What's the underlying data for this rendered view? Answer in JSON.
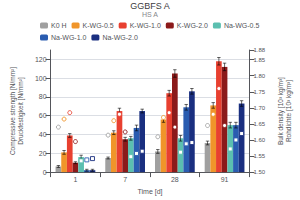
{
  "chart_data": {
    "type": "bar",
    "title": "GGBFS A",
    "subtitle": "HS A",
    "xlabel": "Time [d]",
    "ylabel": "Compressive strength [N/mm²]\nDruckfestigkeit [N/mm²]",
    "y2label": "Bulk density [10³ kg/m³]\nRohdichte [10³ kg/m³]",
    "categories": [
      "1",
      "7",
      "28",
      "91"
    ],
    "series": [
      {
        "name": "K0 H",
        "color": "#a0a0a0",
        "values": [
          6,
          15,
          22,
          31
        ],
        "errors": [
          1,
          1,
          2,
          2
        ]
      },
      {
        "name": "K-WG-0.5",
        "color": "#f0952a",
        "values": [
          21,
          42,
          56,
          71
        ],
        "errors": [
          2,
          2,
          3,
          3
        ]
      },
      {
        "name": "K-WG-1.0",
        "color": "#e84030",
        "values": [
          39,
          65,
          84,
          118
        ],
        "errors": [
          2,
          3,
          3,
          4
        ]
      },
      {
        "name": "K-WG-2.0",
        "color": "#8b1a1a",
        "values": [
          10,
          35,
          105,
          112
        ],
        "errors": [
          1,
          2,
          4,
          4
        ]
      },
      {
        "name": "Na-WG-0.5",
        "color": "#5bbfb0",
        "values": [
          16,
          36,
          36,
          50
        ],
        "errors": [
          2,
          2,
          3,
          3
        ]
      },
      {
        "name": "Na-WG-1.0",
        "color": "#2a5cb0",
        "values": [
          2,
          47,
          69,
          50
        ],
        "errors": [
          1,
          3,
          3,
          3
        ]
      },
      {
        "name": "Na-WG-2.0",
        "color": "#1a2f80",
        "values": [
          2,
          65,
          86,
          73
        ],
        "errors": [
          1,
          2,
          3,
          3
        ]
      },
      {
        "type": "scatter",
        "axis": "y2",
        "marker": "circle",
        "color": "#a0a0a0",
        "values": [
          1.64,
          1.615,
          1.61,
          1.645
        ]
      },
      {
        "type": "scatter",
        "axis": "y2",
        "marker": "circle",
        "color": "#f0952a",
        "values": [
          1.665,
          1.66,
          1.67,
          1.68
        ]
      },
      {
        "type": "scatter",
        "axis": "y2",
        "marker": "circle",
        "color": "#e84030",
        "values": [
          1.685,
          1.68,
          1.685,
          1.76
        ]
      },
      {
        "type": "scatter",
        "axis": "y2",
        "marker": "circle",
        "color": "#8b1a1a",
        "values": [
          1.595,
          1.625,
          1.64,
          1.645
        ]
      },
      {
        "type": "scatter",
        "axis": "y2",
        "marker": "square",
        "color": "#5bbfb0",
        "values": [
          1.535,
          1.548,
          1.562,
          1.572
        ]
      },
      {
        "type": "scatter",
        "axis": "y2",
        "marker": "square",
        "color": "#2a5cb0",
        "values": [
          1.538,
          1.558,
          1.588,
          1.6
        ]
      },
      {
        "type": "scatter",
        "axis": "y2",
        "marker": "square",
        "color": "#1a2f80",
        "values": [
          1.542,
          1.565,
          1.592,
          1.62
        ]
      }
    ],
    "ylim": [
      0,
      130
    ],
    "yticks": [
      0,
      20,
      40,
      60,
      80,
      100,
      120
    ],
    "y2lim": [
      1.5,
      1.88
    ],
    "y2ticks": [
      {
        "value": 1.5,
        "label": "1.50"
      },
      1.55,
      {
        "value": 1.6,
        "label": "1.60"
      },
      1.65,
      {
        "value": 1.7,
        "label": "1.70"
      },
      1.75,
      {
        "value": 1.8,
        "label": "1.80"
      },
      1.85,
      1.88
    ],
    "grid": true,
    "legend": "upper left"
  }
}
